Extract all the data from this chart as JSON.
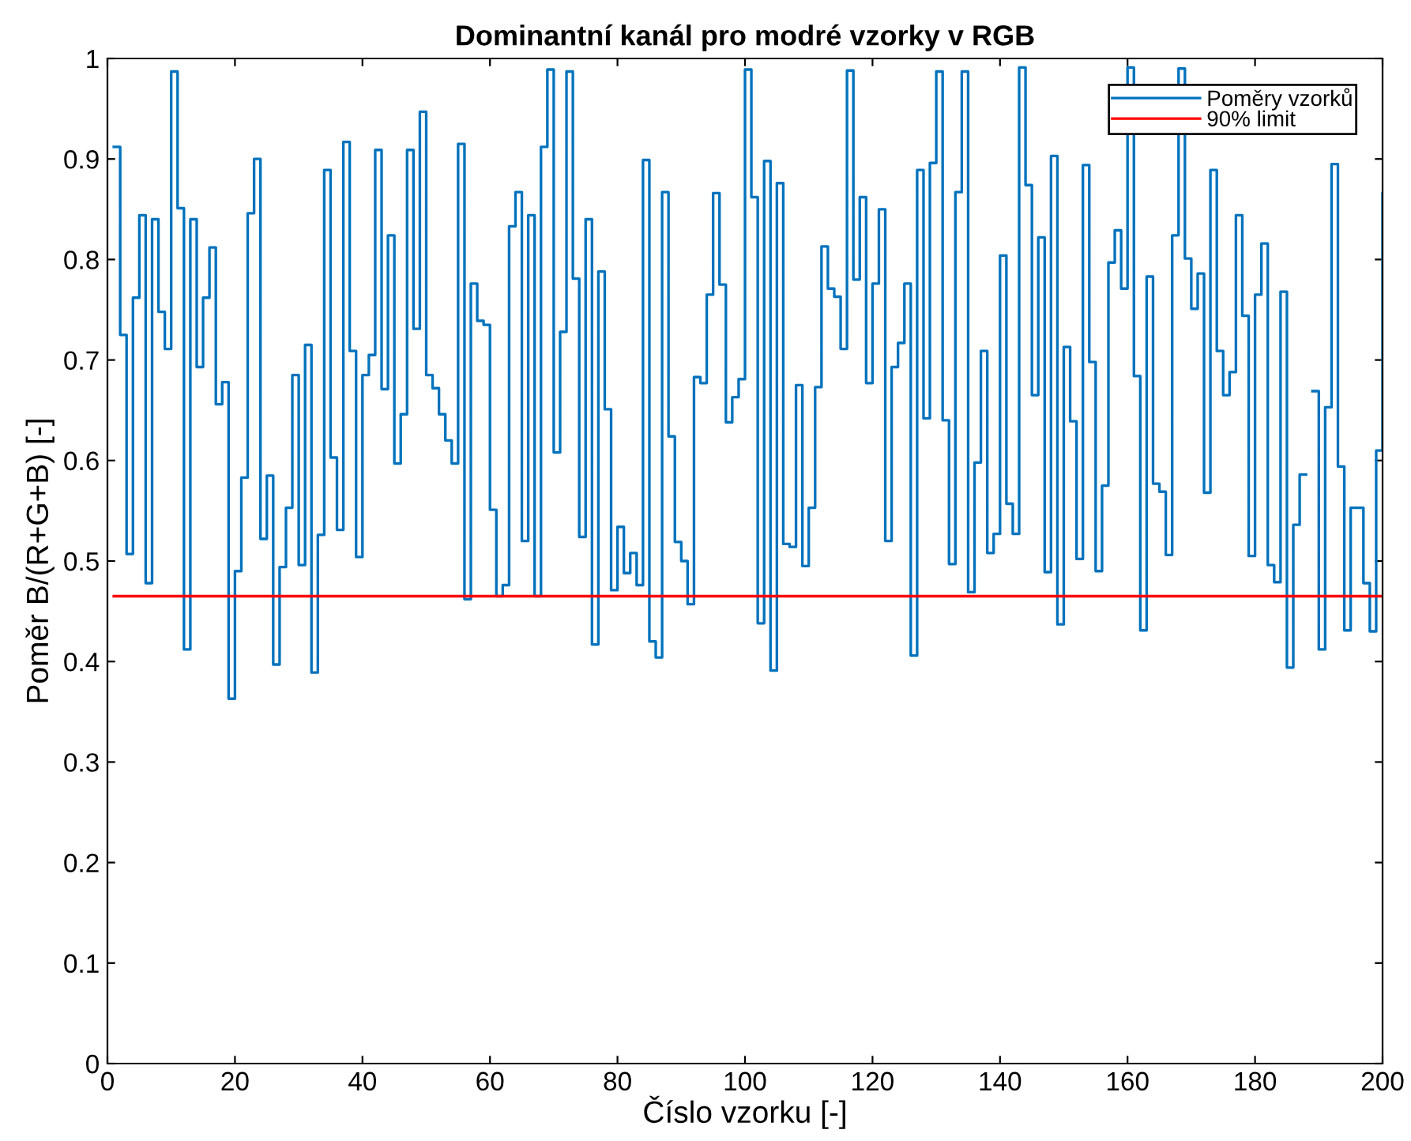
{
  "chart_data": {
    "type": "step",
    "title": "Dominantní kanál pro modré vzorky v RGB",
    "xlabel": "Číslo vzorku [-]",
    "ylabel": "Poměr B/(R+G+B) [-]",
    "xlim": [
      0,
      200
    ],
    "ylim": [
      0,
      1
    ],
    "xticks": [
      0,
      20,
      40,
      60,
      80,
      100,
      120,
      140,
      160,
      180,
      200
    ],
    "yticks": [
      0,
      0.1,
      0.2,
      0.3,
      0.4,
      0.5,
      0.6,
      0.7,
      0.8,
      0.9,
      1
    ],
    "grid": false,
    "legend": "top right",
    "line_style": "solid",
    "marker": "none",
    "series": [
      {
        "name": "Poměry vzorků",
        "color": "#0072bd",
        "x": [
          1,
          2,
          3,
          4,
          5,
          6,
          7,
          8,
          9,
          10,
          11,
          12,
          13,
          14,
          15,
          16,
          17,
          18,
          19,
          20,
          21,
          22,
          23,
          24,
          25,
          26,
          27,
          28,
          29,
          30,
          31,
          32,
          33,
          34,
          35,
          36,
          37,
          38,
          39,
          40,
          41,
          42,
          43,
          44,
          45,
          46,
          47,
          48,
          49,
          50,
          51,
          52,
          53,
          54,
          55,
          56,
          57,
          58,
          59,
          60,
          61,
          62,
          63,
          64,
          65,
          66,
          67,
          68,
          69,
          70,
          71,
          72,
          73,
          74,
          75,
          76,
          77,
          78,
          79,
          80,
          81,
          82,
          83,
          84,
          85,
          86,
          87,
          88,
          89,
          90,
          91,
          92,
          93,
          94,
          95,
          96,
          97,
          98,
          99,
          100,
          101,
          102,
          103,
          104,
          105,
          106,
          107,
          108,
          109,
          110,
          111,
          112,
          113,
          114,
          115,
          116,
          117,
          118,
          119,
          120,
          121,
          122,
          123,
          124,
          125,
          126,
          127,
          128,
          129,
          130,
          131,
          132,
          133,
          134,
          135,
          136,
          137,
          138,
          139,
          140,
          141,
          142,
          143,
          144,
          145,
          146,
          147,
          148,
          149,
          150,
          151,
          152,
          153,
          154,
          155,
          156,
          157,
          158,
          159,
          160,
          161,
          162,
          163,
          164,
          165,
          166,
          167,
          168,
          169,
          170,
          171,
          172,
          173,
          174,
          175,
          176,
          177,
          178,
          179,
          180,
          181,
          182,
          183,
          184,
          185,
          186,
          187,
          188,
          189,
          190,
          191,
          192,
          193,
          194,
          195,
          196,
          197,
          198,
          199,
          200
        ],
        "values": [
          0.912,
          0.725,
          0.507,
          0.762,
          0.844,
          0.478,
          0.84,
          0.748,
          0.711,
          0.987,
          0.851,
          0.412,
          0.84,
          0.693,
          0.762,
          0.812,
          0.656,
          0.678,
          0.363,
          0.49,
          0.583,
          0.846,
          0.9,
          0.522,
          0.585,
          0.397,
          0.494,
          0.553,
          0.685,
          0.496,
          0.715,
          0.389,
          0.526,
          0.889,
          0.603,
          0.531,
          0.917,
          0.709,
          0.504,
          0.685,
          0.705,
          0.909,
          0.671,
          0.824,
          0.597,
          0.646,
          0.909,
          0.731,
          0.947,
          0.685,
          0.672,
          0.646,
          0.62,
          0.597,
          0.915,
          0.462,
          0.776,
          0.739,
          0.735,
          0.551,
          0.465,
          0.476,
          0.833,
          0.867,
          0.52,
          0.844,
          0.465,
          0.912,
          0.989,
          0.608,
          0.728,
          0.987,
          0.781,
          0.524,
          0.84,
          0.417,
          0.788,
          0.651,
          0.471,
          0.534,
          0.488,
          0.508,
          0.476,
          0.899,
          0.42,
          0.404,
          0.867,
          0.624,
          0.519,
          0.5,
          0.457,
          0.683,
          0.677,
          0.765,
          0.866,
          0.775,
          0.638,
          0.663,
          0.681,
          0.989,
          0.862,
          0.438,
          0.898,
          0.391,
          0.876,
          0.517,
          0.514,
          0.675,
          0.495,
          0.553,
          0.673,
          0.813,
          0.771,
          0.763,
          0.711,
          0.988,
          0.78,
          0.862,
          0.677,
          0.776,
          0.85,
          0.52,
          0.693,
          0.717,
          0.776,
          0.406,
          0.889,
          0.642,
          0.896,
          0.987,
          0.64,
          0.497,
          0.867,
          0.987,
          0.469,
          0.598,
          0.709,
          0.508,
          0.527,
          0.804,
          0.557,
          0.527,
          0.991,
          0.874,
          0.665,
          0.822,
          0.489,
          0.903,
          0.437,
          0.713,
          0.639,
          0.502,
          0.894,
          0.698,
          0.49,
          0.575,
          0.797,
          0.829,
          0.771,
          0.991,
          0.684,
          0.431,
          0.783,
          0.577,
          0.569,
          0.506,
          0.824,
          0.99,
          0.801,
          0.751,
          0.786,
          0.568,
          0.889,
          0.709,
          0.665,
          0.688,
          0.844,
          0.744,
          0.505,
          0.765,
          0.816,
          0.496,
          0.479,
          0.768,
          0.394,
          0.536,
          0.586,
          null,
          0.669,
          0.412,
          0.653,
          0.895,
          0.594,
          0.431,
          0.553,
          0.553,
          0.478,
          0.43,
          0.61,
          0.866
        ]
      },
      {
        "name": "90% limit",
        "type": "line",
        "color": "#ff0000",
        "x": [
          1,
          200
        ],
        "values": [
          0.465,
          0.465
        ]
      }
    ]
  }
}
